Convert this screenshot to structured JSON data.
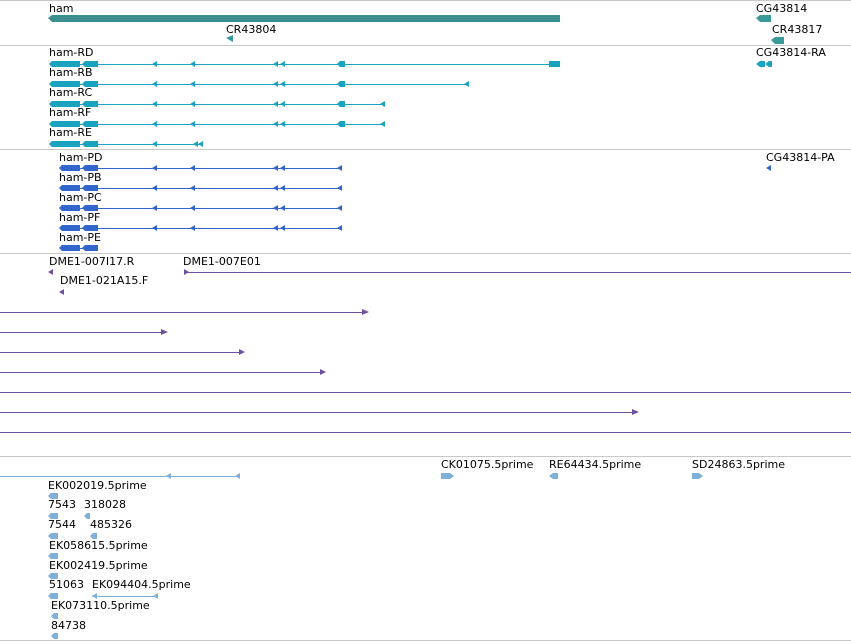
{
  "colors": {
    "gene": "#2e8b8b",
    "ncrna": "#3a9999",
    "transcript": "#1aa3bf",
    "protein": "#3366cc",
    "clone": "#7050a0",
    "est": "#7fb0d8",
    "separator": "#c0c0c0"
  },
  "genes": {
    "ham": "ham",
    "cr43804": "CR43804",
    "cg43814": "CG43814",
    "cr43817": "CR43817"
  },
  "transcripts": {
    "ham_rd": "ham-RD",
    "ham_rb": "ham-RB",
    "ham_rc": "ham-RC",
    "ham_rf": "ham-RF",
    "ham_re": "ham-RE",
    "cg43814_ra": "CG43814-RA"
  },
  "proteins": {
    "ham_pd": "ham-PD",
    "ham_pb": "ham-PB",
    "ham_pc": "ham-PC",
    "ham_pf": "ham-PF",
    "ham_pe": "ham-PE",
    "cg43814_pa": "CG43814-PA"
  },
  "clones": {
    "dme1_007i17": "DME1-007I17.R",
    "dme1_007e01": "DME1-007E01",
    "dme1_021a15": "DME1-021A15.F"
  },
  "ests": {
    "ck01075": "CK01075.5prime",
    "re64434": "RE64434.5prime",
    "sd24863": "SD24863.5prime",
    "ek002019": "EK002019.5prime",
    "e7543": "7543",
    "e318028": "318028",
    "e7544": "7544",
    "e485326": "485326",
    "ek058615": "EK058615.5prime",
    "ek002419": "EK002419.5prime",
    "e51063": "51063",
    "ek094404": "EK094404.5prime",
    "ek073110": "EK073110.5prime",
    "e84738": "84738"
  }
}
